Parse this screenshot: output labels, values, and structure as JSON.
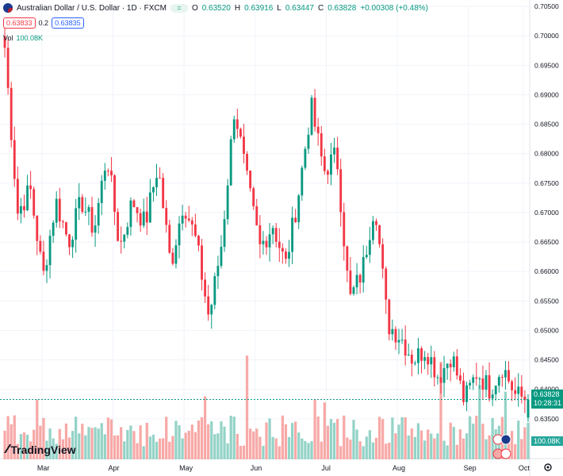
{
  "header": {
    "symbol_title": "Australian Dollar / U.S. Dollar · 1D · FXCM",
    "status_dot": "=",
    "open_label": "O",
    "open": "0.63520",
    "high_label": "H",
    "high": "0.63916",
    "low_label": "L",
    "low": "0.63447",
    "close_label": "C",
    "close": "0.63828",
    "change": "+0.00308 (+0.48%)"
  },
  "quote": {
    "sell": "0.63833",
    "spread": "0.2",
    "buy": "0.63835"
  },
  "volume_legend": {
    "label": "Vol",
    "value": "100.08K"
  },
  "price_tag": {
    "price": "0.63828",
    "countdown": "10:28:31"
  },
  "volume_tag": "100.08K",
  "branding": "TradingView",
  "colors": {
    "up": "#089981",
    "down": "#f23645",
    "vol_up": "#94d3c7",
    "vol_down": "#f7a9a7",
    "grid": "#f0f3fa",
    "text": "#131722"
  },
  "chart_data": {
    "type": "candlestick",
    "title": "Australian Dollar / U.S. Dollar · 1D · FXCM",
    "y_axis": {
      "min": 0.63,
      "max": 0.705,
      "ticks": [
        "0.70500",
        "0.70000",
        "0.69500",
        "0.69000",
        "0.68500",
        "0.68000",
        "0.67500",
        "0.67000",
        "0.66500",
        "0.66000",
        "0.65500",
        "0.65000",
        "0.64500",
        "0.64000",
        "0.63500"
      ]
    },
    "x_axis": {
      "labels": [
        "Mar",
        "Apr",
        "May",
        "Jun",
        "Jul",
        "Aug",
        "Sep",
        "Oct"
      ],
      "label_index": [
        12,
        34,
        56,
        78,
        100,
        122,
        144,
        161
      ]
    },
    "close_path": [
      0.698,
      0.67,
      0.674,
      0.659,
      0.672,
      0.665,
      0.672,
      0.667,
      0.68,
      0.664,
      0.672,
      0.668,
      0.678,
      0.661,
      0.672,
      0.665,
      0.652,
      0.665,
      0.688,
      0.675,
      0.664,
      0.668,
      0.661,
      0.673,
      0.688,
      0.677,
      0.68,
      0.655,
      0.66,
      0.672,
      0.651,
      0.649,
      0.645,
      0.647,
      0.642,
      0.646,
      0.638,
      0.643,
      0.64,
      0.644,
      0.639,
      0.6383
    ],
    "close_path_note": "approximate closing-price waypoints, one per ~4 sessions",
    "volume_range": [
      30,
      160
    ],
    "last": {
      "open": 0.6352,
      "high": 0.63916,
      "low": 0.63447,
      "close": 0.63828,
      "volume": "100.08K"
    }
  }
}
